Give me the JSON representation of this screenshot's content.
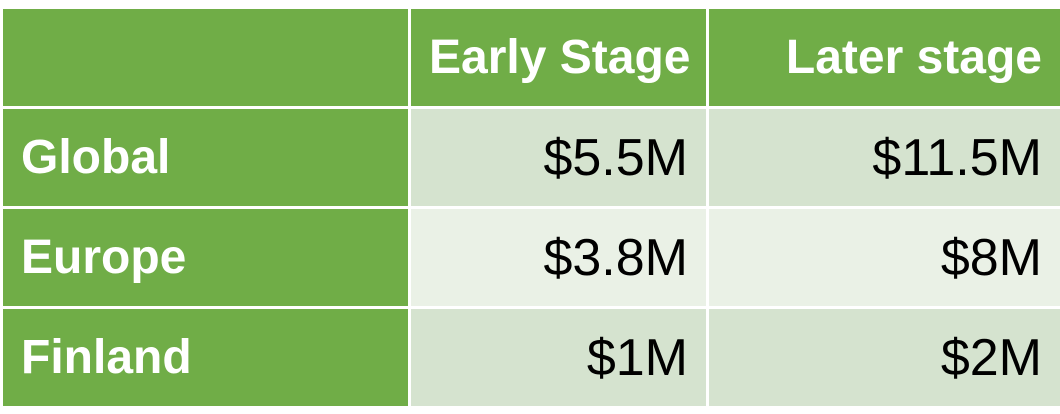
{
  "chart_data": {
    "type": "table",
    "columns": [
      "",
      "Early Stage",
      "Later stage"
    ],
    "rows": [
      {
        "label": "Global",
        "values": [
          "$5.5M",
          "$11.5M"
        ]
      },
      {
        "label": "Europe",
        "values": [
          "$3.8M",
          "$8M"
        ]
      },
      {
        "label": "Finland",
        "values": [
          "$1M",
          "$2M"
        ]
      }
    ]
  },
  "colors": {
    "header_green": "#70ad47",
    "row_shade_dark": "#d5e3cf",
    "row_shade_light": "#eaf1e6",
    "header_text": "#ffffff",
    "value_text": "#000000"
  }
}
